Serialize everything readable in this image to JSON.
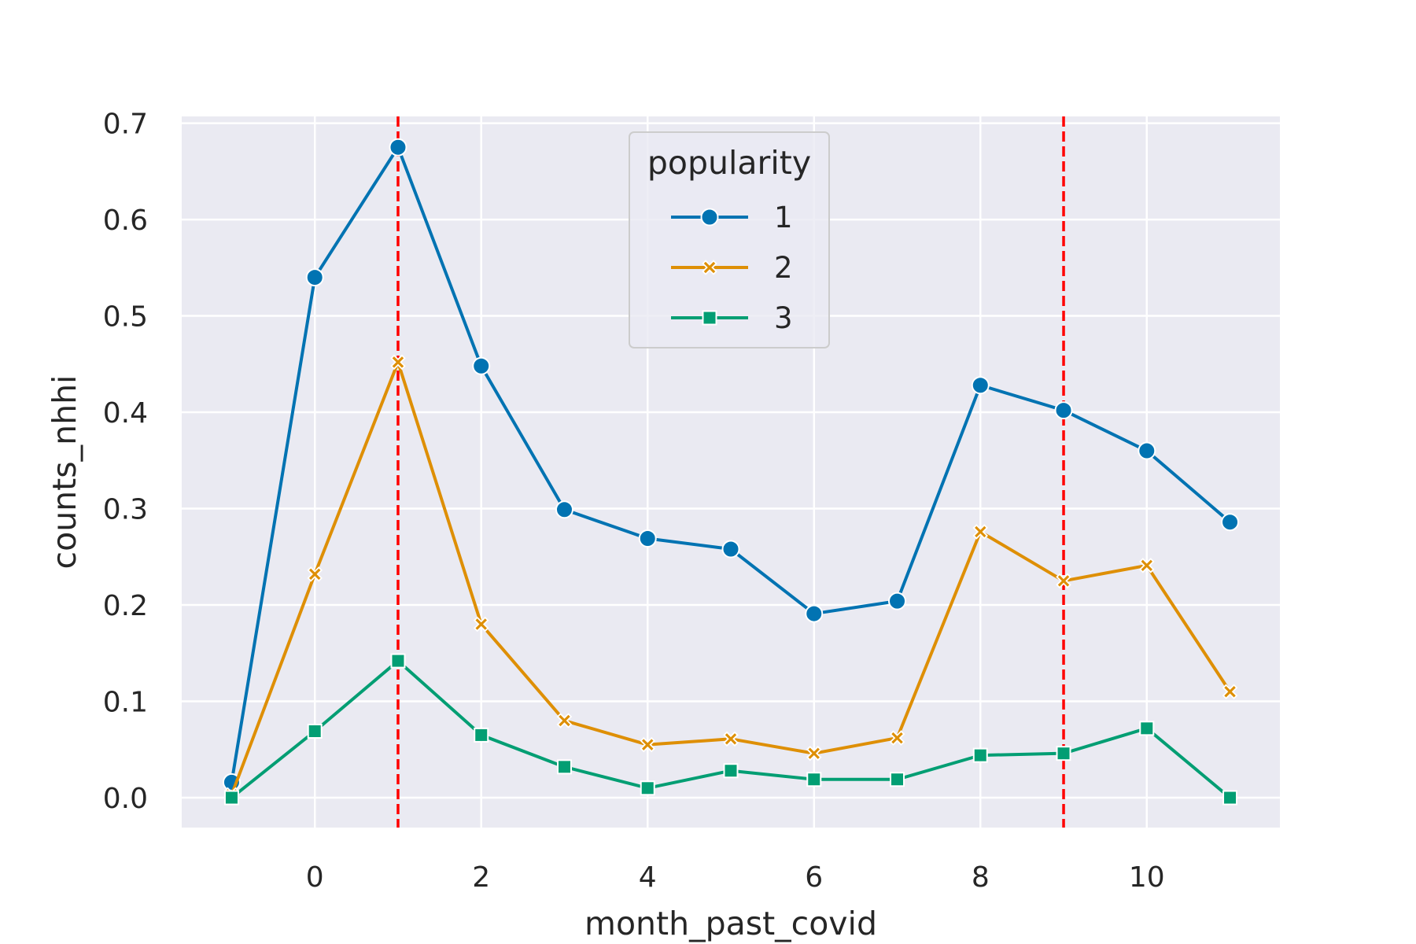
{
  "chart_data": {
    "type": "line",
    "title": "",
    "xlabel": "month_past_covid",
    "ylabel": "counts_nhhi",
    "xlim": [
      -1.6,
      11.6
    ],
    "ylim": [
      -0.031,
      0.707
    ],
    "xticks": [
      0,
      2,
      4,
      6,
      8,
      10
    ],
    "yticks": [
      0.0,
      0.1,
      0.2,
      0.3,
      0.4,
      0.5,
      0.6,
      0.7
    ],
    "ytick_labels": [
      "0.0",
      "0.1",
      "0.2",
      "0.3",
      "0.4",
      "0.5",
      "0.6",
      "0.7"
    ],
    "grid": true,
    "x": [
      -1,
      0,
      1,
      2,
      3,
      4,
      5,
      6,
      7,
      8,
      9,
      10,
      11
    ],
    "legend": {
      "title": "popularity",
      "placement": "upper center"
    },
    "series": [
      {
        "name": "1",
        "marker": "circle",
        "color": "#0173b2",
        "values": [
          0.016,
          0.54,
          0.675,
          0.448,
          0.299,
          0.269,
          0.258,
          0.191,
          0.204,
          0.428,
          0.402,
          0.36,
          0.286
        ]
      },
      {
        "name": "2",
        "marker": "x",
        "color": "#de8f05",
        "values": [
          0.003,
          0.232,
          0.452,
          0.18,
          0.08,
          0.055,
          0.061,
          0.046,
          0.062,
          0.276,
          0.225,
          0.241,
          0.11
        ]
      },
      {
        "name": "3",
        "marker": "square",
        "color": "#029e73",
        "values": [
          0.0,
          0.069,
          0.142,
          0.065,
          0.032,
          0.01,
          0.028,
          0.019,
          0.019,
          0.044,
          0.046,
          0.072,
          0.0
        ]
      }
    ],
    "vlines": [
      {
        "x": 1,
        "color": "#ff0000",
        "style": "dashed"
      },
      {
        "x": 9,
        "color": "#ff0000",
        "style": "dashed"
      }
    ],
    "colors": {
      "plot_background": "#eaeaf2",
      "grid": "#ffffff"
    }
  }
}
